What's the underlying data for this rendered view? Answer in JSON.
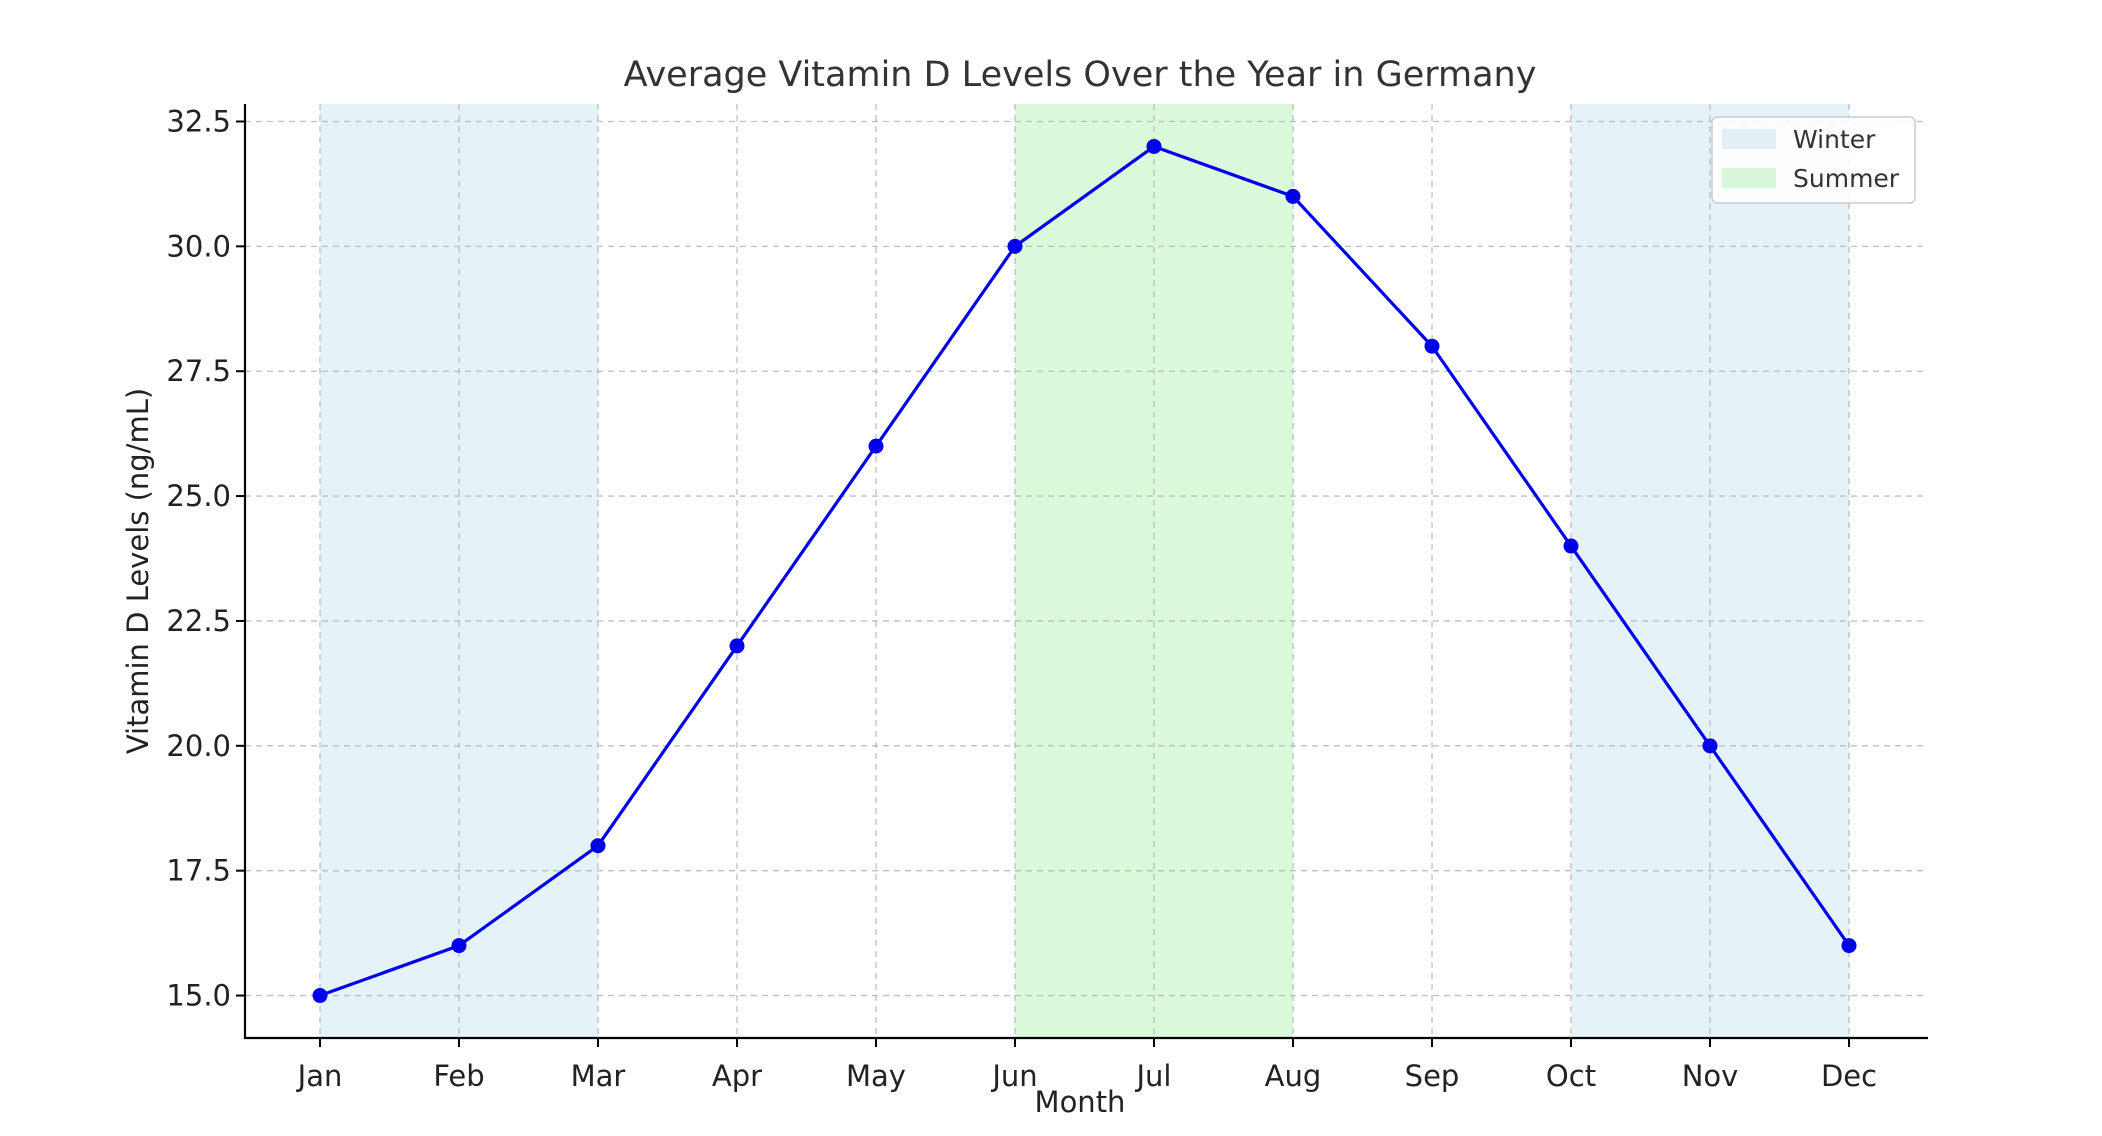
{
  "chart_data": {
    "type": "line",
    "title": "Average Vitamin D Levels Over the Year in Germany",
    "xlabel": "Month",
    "ylabel": "Vitamin D Levels (ng/mL)",
    "categories": [
      "Jan",
      "Feb",
      "Mar",
      "Apr",
      "May",
      "Jun",
      "Jul",
      "Aug",
      "Sep",
      "Oct",
      "Nov",
      "Dec"
    ],
    "series": [
      {
        "name": "Vitamin D Levels",
        "values": [
          15,
          16,
          18,
          22,
          26,
          30,
          32,
          31,
          28,
          24,
          20,
          16
        ],
        "color": "#0000ee"
      }
    ],
    "yticks": [
      "15.0",
      "17.5",
      "20.0",
      "22.5",
      "25.0",
      "27.5",
      "30.0",
      "32.5"
    ],
    "ylim": [
      14.15,
      32.85
    ],
    "grid": true,
    "legend": {
      "position": "top-right",
      "entries": [
        {
          "label": "Winter",
          "color": "#add8e6"
        },
        {
          "label": "Summer",
          "color": "#90ee90"
        }
      ]
    },
    "shaded_regions": [
      {
        "label": "Winter",
        "from": "Jan",
        "to": "Mar",
        "color": "#add8e6"
      },
      {
        "label": "Summer",
        "from": "Jun",
        "to": "Aug",
        "color": "#90ee90"
      },
      {
        "label": "Winter",
        "from": "Oct",
        "to": "Dec",
        "color": "#add8e6"
      }
    ]
  }
}
